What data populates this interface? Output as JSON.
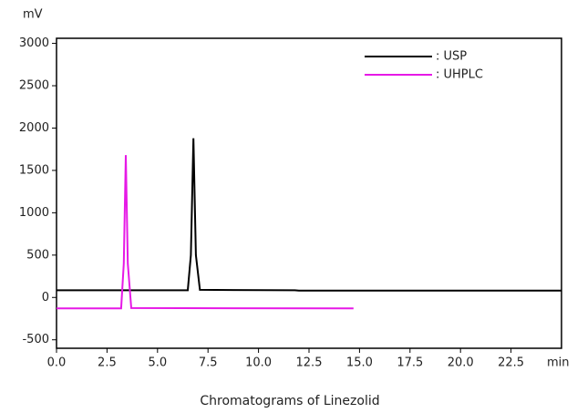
{
  "chart_data": {
    "type": "line",
    "x_label": "Chromatograms of Linezolid",
    "x_unit": "min",
    "y_unit": "mV",
    "xlim": [
      0,
      25
    ],
    "xticks": [
      {
        "value": 0,
        "label": "0.0"
      },
      2.5,
      {
        "value": 5,
        "label": "5.0"
      },
      7.5,
      {
        "value": 10,
        "label": "10.0"
      },
      12.5,
      {
        "value": 15,
        "label": "15.0"
      },
      17.5,
      {
        "value": 20,
        "label": "20.0"
      },
      22.5
    ],
    "ylim": [
      -600,
      3060
    ],
    "yticks": [
      -500,
      0,
      500,
      1000,
      1500,
      2000,
      2500,
      3000
    ],
    "legend": "upper right",
    "series": [
      {
        "name": ": USP",
        "color": "#000000",
        "x": [
          0,
          6.5,
          6.65,
          6.78,
          6.9,
          7.1,
          11.8,
          12.0,
          25
        ],
        "values": [
          85,
          85,
          500,
          1880,
          500,
          90,
          85,
          80,
          80
        ]
      },
      {
        "name": ": UHPLC",
        "color": "#e619e6",
        "x": [
          0,
          3.2,
          3.33,
          3.43,
          3.53,
          3.7,
          14.7
        ],
        "values": [
          -130,
          -130,
          400,
          1680,
          400,
          -125,
          -130
        ]
      }
    ]
  }
}
